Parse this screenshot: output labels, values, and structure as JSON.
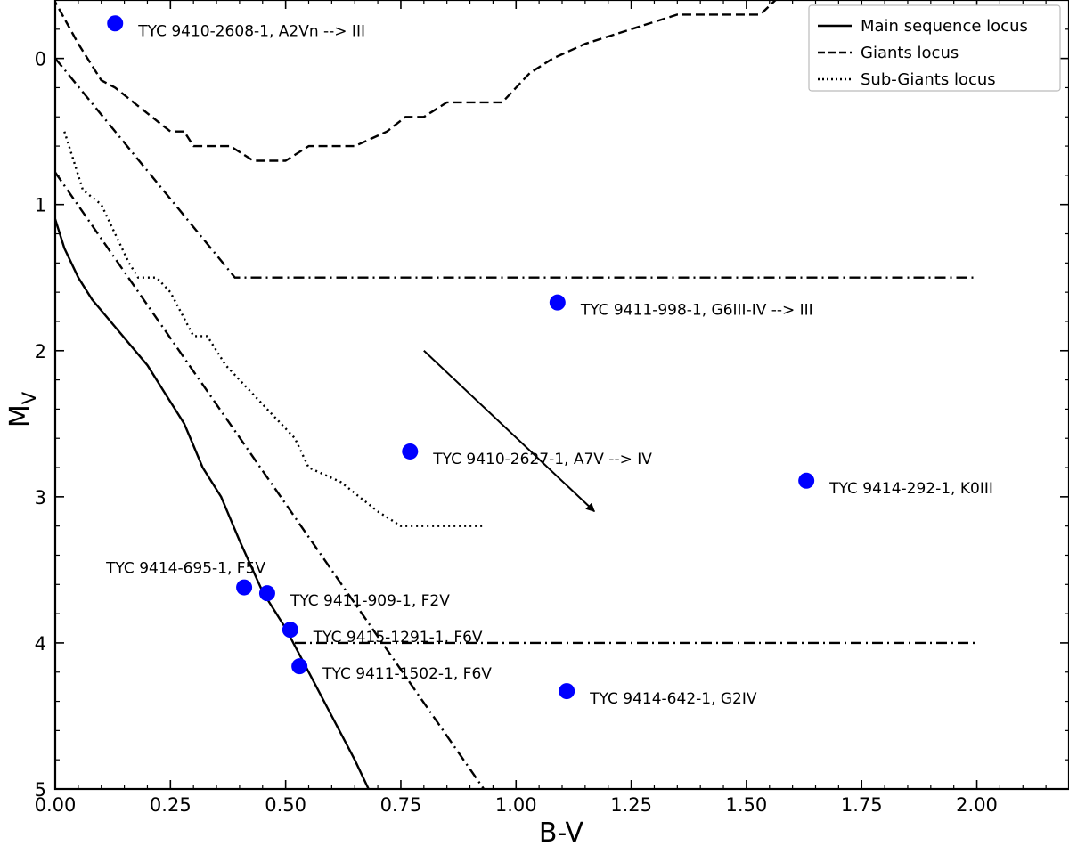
{
  "chart_data": {
    "type": "scatter",
    "xlabel": "B-V",
    "ylabel": "M",
    "ylabel_sub": "V",
    "xlim": [
      0.0,
      2.2
    ],
    "ylim": [
      5.0,
      -0.4
    ],
    "y_inverted": true,
    "x_ticks": [
      "0.00",
      "0.25",
      "0.50",
      "0.75",
      "1.00",
      "1.25",
      "1.50",
      "1.75",
      "2.00"
    ],
    "x_tick_values": [
      0.0,
      0.25,
      0.5,
      0.75,
      1.0,
      1.25,
      1.5,
      1.75,
      2.0
    ],
    "y_ticks": [
      "0",
      "1",
      "2",
      "3",
      "4",
      "5"
    ],
    "y_tick_values": [
      0,
      1,
      2,
      3,
      4,
      5
    ],
    "grid": false,
    "legend_position": "top-right",
    "legend": [
      {
        "label": "Main sequence locus",
        "style": "solid"
      },
      {
        "label": "Giants locus",
        "style": "dashed"
      },
      {
        "label": "Sub-Giants locus",
        "style": "dotted"
      }
    ],
    "points_color": "#0000ff",
    "points": [
      {
        "x": 0.13,
        "y": -0.24,
        "label": "TYC 9410-2608-1, A2Vn --> III",
        "label_pos": "right"
      },
      {
        "x": 1.09,
        "y": 1.67,
        "label": "TYC 9411-998-1, G6III-IV --> III",
        "label_pos": "right"
      },
      {
        "x": 0.77,
        "y": 2.69,
        "label": "TYC 9410-2627-1, A7V --> IV",
        "label_pos": "right"
      },
      {
        "x": 1.63,
        "y": 2.89,
        "label": "TYC 9414-292-1, K0III",
        "label_pos": "right"
      },
      {
        "x": 0.41,
        "y": 3.62,
        "label": "TYC 9414-695-1, F5V",
        "label_pos": "above"
      },
      {
        "x": 0.46,
        "y": 3.66,
        "label": "TYC 9411-909-1, F2V",
        "label_pos": "right"
      },
      {
        "x": 0.51,
        "y": 3.91,
        "label": "TYC 9415-1291-1, F6V",
        "label_pos": "right"
      },
      {
        "x": 0.53,
        "y": 4.16,
        "label": "TYC 9411-1502-1, F6V",
        "label_pos": "right"
      },
      {
        "x": 1.11,
        "y": 4.33,
        "label": "TYC 9414-642-1, G2IV",
        "label_pos": "right"
      }
    ],
    "lines": [
      {
        "name": "main-sequence-locus",
        "style": "solid",
        "points": [
          [
            0.0,
            1.1
          ],
          [
            0.02,
            1.3
          ],
          [
            0.05,
            1.5
          ],
          [
            0.08,
            1.65
          ],
          [
            0.12,
            1.8
          ],
          [
            0.16,
            1.95
          ],
          [
            0.2,
            2.1
          ],
          [
            0.24,
            2.3
          ],
          [
            0.26,
            2.4
          ],
          [
            0.28,
            2.5
          ],
          [
            0.3,
            2.65
          ],
          [
            0.32,
            2.8
          ],
          [
            0.36,
            3.0
          ],
          [
            0.4,
            3.3
          ],
          [
            0.45,
            3.65
          ],
          [
            0.5,
            3.9
          ],
          [
            0.55,
            4.2
          ],
          [
            0.6,
            4.5
          ],
          [
            0.65,
            4.8
          ],
          [
            0.68,
            5.0
          ]
        ]
      },
      {
        "name": "main-sequence-offset",
        "style": "dashdot",
        "points": [
          [
            0.0,
            0.78
          ],
          [
            0.93,
            5.0
          ]
        ]
      },
      {
        "name": "giants-locus",
        "style": "dashed",
        "points": [
          [
            -0.02,
            -0.5
          ],
          [
            0.05,
            -0.1
          ],
          [
            0.1,
            0.15
          ],
          [
            0.13,
            0.2
          ],
          [
            0.17,
            0.3
          ],
          [
            0.25,
            0.5
          ],
          [
            0.28,
            0.5
          ],
          [
            0.3,
            0.6
          ],
          [
            0.38,
            0.6
          ],
          [
            0.43,
            0.7
          ],
          [
            0.5,
            0.7
          ],
          [
            0.55,
            0.6
          ],
          [
            0.65,
            0.6
          ],
          [
            0.72,
            0.5
          ],
          [
            0.76,
            0.4
          ],
          [
            0.8,
            0.4
          ],
          [
            0.85,
            0.3
          ],
          [
            0.97,
            0.3
          ],
          [
            1.0,
            0.2
          ],
          [
            1.03,
            0.1
          ],
          [
            1.08,
            0.0
          ],
          [
            1.15,
            -0.1
          ],
          [
            1.25,
            -0.2
          ],
          [
            1.35,
            -0.3
          ],
          [
            1.43,
            -0.3
          ],
          [
            1.53,
            -0.3
          ],
          [
            1.58,
            -0.45
          ],
          [
            1.6,
            -0.5
          ]
        ]
      },
      {
        "name": "giants-offset",
        "style": "dashdot",
        "points": [
          [
            0.0,
            0.0
          ],
          [
            0.39,
            1.5
          ],
          [
            2.0,
            1.5
          ]
        ]
      },
      {
        "name": "sub-giants-locus",
        "style": "dotted",
        "points": [
          [
            0.02,
            0.5
          ],
          [
            0.04,
            0.7
          ],
          [
            0.06,
            0.9
          ],
          [
            0.1,
            1.0
          ],
          [
            0.13,
            1.2
          ],
          [
            0.16,
            1.4
          ],
          [
            0.18,
            1.5
          ],
          [
            0.22,
            1.5
          ],
          [
            0.25,
            1.6
          ],
          [
            0.3,
            1.9
          ],
          [
            0.33,
            1.9
          ],
          [
            0.37,
            2.1
          ],
          [
            0.4,
            2.2
          ],
          [
            0.46,
            2.4
          ],
          [
            0.52,
            2.6
          ],
          [
            0.55,
            2.8
          ],
          [
            0.62,
            2.9
          ],
          [
            0.66,
            3.0
          ],
          [
            0.7,
            3.1
          ],
          [
            0.75,
            3.2
          ],
          [
            0.85,
            3.2
          ],
          [
            0.93,
            3.2
          ]
        ]
      },
      {
        "name": "sub-giants-offset",
        "style": "dashdot",
        "points": [
          [
            0.52,
            4.0
          ],
          [
            2.0,
            4.0
          ]
        ]
      }
    ],
    "arrow": {
      "from": [
        0.8,
        2.0
      ],
      "to": [
        1.17,
        3.1
      ]
    }
  }
}
